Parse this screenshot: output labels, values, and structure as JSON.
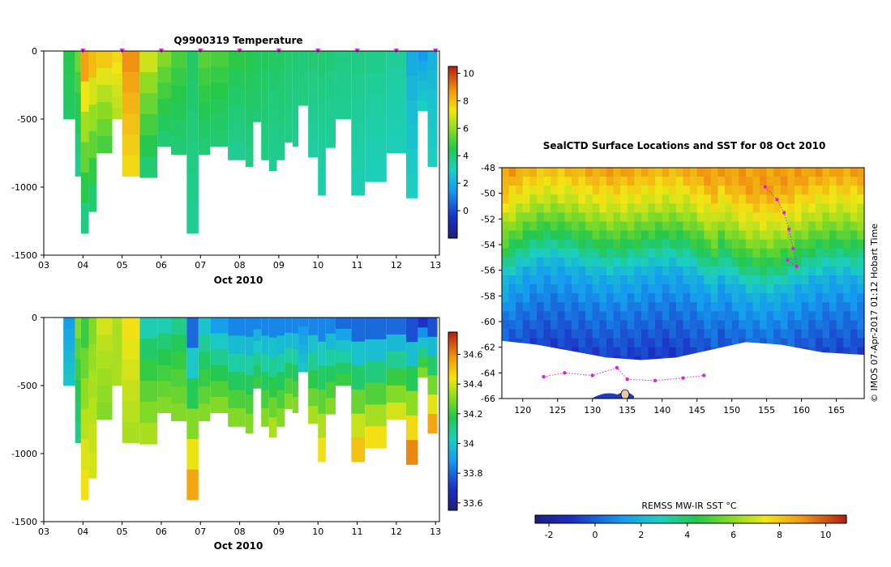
{
  "chart_data": [
    {
      "type": "heatmap",
      "name": "profile-temperature",
      "title": "Q9900319  Temperature",
      "xlabel": "Oct 2010",
      "ylabel": "",
      "xlim": [
        3,
        13.1
      ],
      "ylim": [
        -1500,
        0
      ],
      "x_ticks": [
        "03",
        "04",
        "05",
        "06",
        "07",
        "08",
        "09",
        "10",
        "11",
        "12",
        "13"
      ],
      "y_ticks": [
        "0",
        "-500",
        "-1000",
        "-1500"
      ],
      "colorbar": {
        "range": [
          -2,
          10.5
        ],
        "ticks": [
          "0",
          "2",
          "4",
          "6",
          "8",
          "10"
        ],
        "tick_values": [
          0,
          2,
          4,
          6,
          8,
          10
        ]
      },
      "profile_markers_x": [
        4.0,
        5.0,
        6.0,
        7.0,
        8.0,
        9.0,
        10.0,
        11.0,
        12.0,
        13.0
      ],
      "casts": [
        {
          "x0": 3.5,
          "x1": 3.8,
          "depth": 500,
          "surface": 4.5,
          "deep": 4.2
        },
        {
          "x0": 3.8,
          "x1": 3.95,
          "depth": 920,
          "surface": 5.5,
          "deep": 3.6
        },
        {
          "x0": 3.95,
          "x1": 4.15,
          "depth": 1340,
          "surface": 8.5,
          "deep": 3.8
        },
        {
          "x0": 4.15,
          "x1": 4.35,
          "depth": 1180,
          "surface": 8.0,
          "deep": 4.0
        },
        {
          "x0": 4.35,
          "x1": 4.75,
          "depth": 750,
          "surface": 7.8,
          "deep": 5.0
        },
        {
          "x0": 4.75,
          "x1": 5.0,
          "depth": 500,
          "surface": 7.5,
          "deep": 6.5
        },
        {
          "x0": 5.0,
          "x1": 5.45,
          "depth": 920,
          "surface": 8.8,
          "deep": 7.5
        },
        {
          "x0": 5.45,
          "x1": 5.9,
          "depth": 930,
          "surface": 6.8,
          "deep": 4.0
        },
        {
          "x0": 5.9,
          "x1": 6.25,
          "depth": 700,
          "surface": 5.8,
          "deep": 4.0
        },
        {
          "x0": 6.25,
          "x1": 6.65,
          "depth": 760,
          "surface": 5.0,
          "deep": 4.0
        },
        {
          "x0": 6.65,
          "x1": 6.95,
          "depth": 1340,
          "surface": 4.2,
          "deep": 3.6
        },
        {
          "x0": 6.95,
          "x1": 7.25,
          "depth": 760,
          "surface": 5.2,
          "deep": 4.0
        },
        {
          "x0": 7.25,
          "x1": 7.7,
          "depth": 700,
          "surface": 5.0,
          "deep": 4.0
        },
        {
          "x0": 7.7,
          "x1": 8.15,
          "depth": 800,
          "surface": 4.6,
          "deep": 3.6
        },
        {
          "x0": 8.15,
          "x1": 8.35,
          "depth": 850,
          "surface": 4.5,
          "deep": 3.8
        },
        {
          "x0": 8.35,
          "x1": 8.55,
          "depth": 520,
          "surface": 4.3,
          "deep": 4.0
        },
        {
          "x0": 8.55,
          "x1": 8.75,
          "depth": 800,
          "surface": 4.3,
          "deep": 3.8
        },
        {
          "x0": 8.75,
          "x1": 8.95,
          "depth": 880,
          "surface": 4.2,
          "deep": 3.6
        },
        {
          "x0": 8.95,
          "x1": 9.15,
          "depth": 800,
          "surface": 4.2,
          "deep": 3.7
        },
        {
          "x0": 9.15,
          "x1": 9.35,
          "depth": 670,
          "surface": 4.0,
          "deep": 3.8
        },
        {
          "x0": 9.35,
          "x1": 9.5,
          "depth": 700,
          "surface": 4.0,
          "deep": 3.6
        },
        {
          "x0": 9.5,
          "x1": 9.75,
          "depth": 400,
          "surface": 3.9,
          "deep": 3.8
        },
        {
          "x0": 9.75,
          "x1": 10.0,
          "depth": 780,
          "surface": 4.0,
          "deep": 3.4
        },
        {
          "x0": 10.0,
          "x1": 10.2,
          "depth": 1060,
          "surface": 4.0,
          "deep": 3.3
        },
        {
          "x0": 10.2,
          "x1": 10.45,
          "depth": 710,
          "surface": 3.9,
          "deep": 3.5
        },
        {
          "x0": 10.45,
          "x1": 10.85,
          "depth": 500,
          "surface": 3.8,
          "deep": 3.6
        },
        {
          "x0": 10.85,
          "x1": 11.2,
          "depth": 1060,
          "surface": 3.8,
          "deep": 3.2
        },
        {
          "x0": 11.2,
          "x1": 11.75,
          "depth": 960,
          "surface": 3.7,
          "deep": 3.1
        },
        {
          "x0": 11.75,
          "x1": 12.25,
          "depth": 750,
          "surface": 3.5,
          "deep": 3.1
        },
        {
          "x0": 12.25,
          "x1": 12.55,
          "depth": 1080,
          "surface": 2.0,
          "deep": 3.0
        },
        {
          "x0": 12.55,
          "x1": 12.8,
          "depth": 440,
          "surface": 1.5,
          "deep": 3.0
        },
        {
          "x0": 12.8,
          "x1": 13.05,
          "depth": 850,
          "surface": 2.2,
          "deep": 3.0
        }
      ]
    },
    {
      "type": "heatmap",
      "name": "profile-salinity",
      "title": "",
      "xlabel": "Oct 2010",
      "ylabel": "",
      "xlim": [
        3,
        13.1
      ],
      "ylim": [
        -1500,
        0
      ],
      "x_ticks": [
        "03",
        "04",
        "05",
        "06",
        "07",
        "08",
        "09",
        "10",
        "11",
        "12",
        "13"
      ],
      "y_ticks": [
        "0",
        "-500",
        "-1000",
        "-1500"
      ],
      "colorbar": {
        "range": [
          33.55,
          34.75
        ],
        "ticks": [
          "33.6",
          "33.8",
          "34",
          "34.2",
          "34.4",
          "34.6"
        ],
        "tick_values": [
          33.6,
          33.8,
          34.0,
          34.2,
          34.4,
          34.6
        ]
      },
      "casts": [
        {
          "x0": 3.5,
          "x1": 3.8,
          "depth": 500,
          "surface": 33.9,
          "deep": 34.0
        },
        {
          "x0": 3.8,
          "x1": 3.95,
          "depth": 920,
          "surface": 34.3,
          "deep": 34.1
        },
        {
          "x0": 3.95,
          "x1": 4.15,
          "depth": 1340,
          "surface": 34.2,
          "deep": 34.45
        },
        {
          "x0": 4.15,
          "x1": 4.35,
          "depth": 1180,
          "surface": 34.3,
          "deep": 34.4
        },
        {
          "x0": 4.35,
          "x1": 4.75,
          "depth": 750,
          "surface": 34.4,
          "deep": 34.3
        },
        {
          "x0": 4.75,
          "x1": 5.0,
          "depth": 500,
          "surface": 34.35,
          "deep": 34.35
        },
        {
          "x0": 5.0,
          "x1": 5.45,
          "depth": 920,
          "surface": 34.45,
          "deep": 34.35
        },
        {
          "x0": 5.45,
          "x1": 5.9,
          "depth": 930,
          "surface": 34.05,
          "deep": 34.35
        },
        {
          "x0": 5.9,
          "x1": 6.25,
          "depth": 700,
          "surface": 34.05,
          "deep": 34.3
        },
        {
          "x0": 6.25,
          "x1": 6.65,
          "depth": 760,
          "surface": 34.1,
          "deep": 34.3
        },
        {
          "x0": 6.65,
          "x1": 6.95,
          "depth": 1340,
          "surface": 33.8,
          "deep": 34.55
        },
        {
          "x0": 6.95,
          "x1": 7.25,
          "depth": 760,
          "surface": 34.0,
          "deep": 34.3
        },
        {
          "x0": 7.25,
          "x1": 7.7,
          "depth": 700,
          "surface": 33.9,
          "deep": 34.3
        },
        {
          "x0": 7.7,
          "x1": 8.15,
          "depth": 800,
          "surface": 33.85,
          "deep": 34.3
        },
        {
          "x0": 8.15,
          "x1": 8.35,
          "depth": 850,
          "surface": 33.85,
          "deep": 34.3
        },
        {
          "x0": 8.35,
          "x1": 8.55,
          "depth": 520,
          "surface": 33.85,
          "deep": 34.2
        },
        {
          "x0": 8.55,
          "x1": 8.75,
          "depth": 800,
          "surface": 33.85,
          "deep": 34.3
        },
        {
          "x0": 8.75,
          "x1": 8.95,
          "depth": 880,
          "surface": 33.85,
          "deep": 34.35
        },
        {
          "x0": 8.95,
          "x1": 9.15,
          "depth": 800,
          "surface": 33.85,
          "deep": 34.3
        },
        {
          "x0": 9.15,
          "x1": 9.35,
          "depth": 670,
          "surface": 33.85,
          "deep": 34.3
        },
        {
          "x0": 9.35,
          "x1": 9.5,
          "depth": 700,
          "surface": 33.85,
          "deep": 34.3
        },
        {
          "x0": 9.5,
          "x1": 9.75,
          "depth": 400,
          "surface": 33.85,
          "deep": 34.0
        },
        {
          "x0": 9.75,
          "x1": 10.0,
          "depth": 780,
          "surface": 33.85,
          "deep": 34.35
        },
        {
          "x0": 10.0,
          "x1": 10.2,
          "depth": 1060,
          "surface": 33.85,
          "deep": 34.45
        },
        {
          "x0": 10.2,
          "x1": 10.45,
          "depth": 710,
          "surface": 33.85,
          "deep": 34.3
        },
        {
          "x0": 10.45,
          "x1": 10.85,
          "depth": 500,
          "surface": 33.8,
          "deep": 34.2
        },
        {
          "x0": 10.85,
          "x1": 11.2,
          "depth": 1060,
          "surface": 33.8,
          "deep": 34.5
        },
        {
          "x0": 11.2,
          "x1": 11.75,
          "depth": 960,
          "surface": 33.8,
          "deep": 34.45
        },
        {
          "x0": 11.75,
          "x1": 12.25,
          "depth": 750,
          "surface": 33.8,
          "deep": 34.4
        },
        {
          "x0": 12.25,
          "x1": 12.55,
          "depth": 1080,
          "surface": 33.75,
          "deep": 34.6
        },
        {
          "x0": 12.55,
          "x1": 12.8,
          "depth": 440,
          "surface": 33.7,
          "deep": 34.3
        },
        {
          "x0": 12.8,
          "x1": 13.05,
          "depth": 850,
          "surface": 33.75,
          "deep": 34.55
        }
      ]
    },
    {
      "type": "heatmap",
      "name": "sst-map",
      "title": "SealCTD Surface Locations and SST for 08 Oct 2010",
      "xlabel": "",
      "ylabel": "",
      "xlim": [
        117,
        169
      ],
      "ylim": [
        -66,
        -48
      ],
      "x_ticks": [
        "120",
        "125",
        "130",
        "135",
        "140",
        "145",
        "150",
        "155",
        "160",
        "165"
      ],
      "x_tick_values": [
        120,
        125,
        130,
        135,
        140,
        145,
        150,
        155,
        160,
        165
      ],
      "y_ticks": [
        "-48",
        "-50",
        "-52",
        "-54",
        "-56",
        "-58",
        "-60",
        "-62",
        "-64",
        "-66"
      ],
      "y_tick_values": [
        -48,
        -50,
        -52,
        -54,
        -56,
        -58,
        -60,
        -62,
        -64,
        -66
      ],
      "side_label": "© IMOS 07-Apr-2017 01:12 Hobart Time",
      "colorbar": {
        "label": "REMSS MW-IR SST °C",
        "range": [
          -2.6,
          10.9
        ],
        "ticks": [
          "-2",
          "0",
          "2",
          "4",
          "6",
          "8",
          "10"
        ],
        "tick_values": [
          -2,
          0,
          2,
          4,
          6,
          8,
          10
        ]
      },
      "sst_zones": [
        {
          "north_of": -51.5,
          "sst": 8.8
        },
        {
          "north_of": -54,
          "sst": 6.5
        },
        {
          "north_of": -56,
          "sst": 4.2
        },
        {
          "north_of": -58.5,
          "sst": 1.8
        },
        {
          "north_of": -62,
          "sst": 0.5
        },
        {
          "north_of": -66,
          "sst": -0.8
        }
      ],
      "ice_edge_lat": [
        -61.5,
        -61.8,
        -62.3,
        -62.8,
        -63.0,
        -62.8,
        -62.2,
        -61.6,
        -61.8,
        -62.4,
        -62.6
      ],
      "ice_edge_lon": [
        117,
        122,
        127,
        132,
        137,
        142,
        147,
        152,
        157,
        163,
        169
      ],
      "seal_track": [
        {
          "lon": 154.8,
          "lat": -49.5
        },
        {
          "lon": 156.5,
          "lat": -50.5
        },
        {
          "lon": 157.5,
          "lat": -51.5
        },
        {
          "lon": 158.2,
          "lat": -52.8
        },
        {
          "lon": 158.8,
          "lat": -54.3
        },
        {
          "lon": 159.3,
          "lat": -55.7
        },
        {
          "lon": 158.0,
          "lat": -55.2
        }
      ],
      "seal_track_south": [
        {
          "lon": 123.0,
          "lat": -64.3
        },
        {
          "lon": 126.0,
          "lat": -64.0
        },
        {
          "lon": 130.0,
          "lat": -64.2
        },
        {
          "lon": 133.5,
          "lat": -63.6
        },
        {
          "lon": 135.0,
          "lat": -64.5
        },
        {
          "lon": 139.0,
          "lat": -64.6
        },
        {
          "lon": 143.0,
          "lat": -64.4
        },
        {
          "lon": 146.0,
          "lat": -64.2
        }
      ]
    }
  ]
}
